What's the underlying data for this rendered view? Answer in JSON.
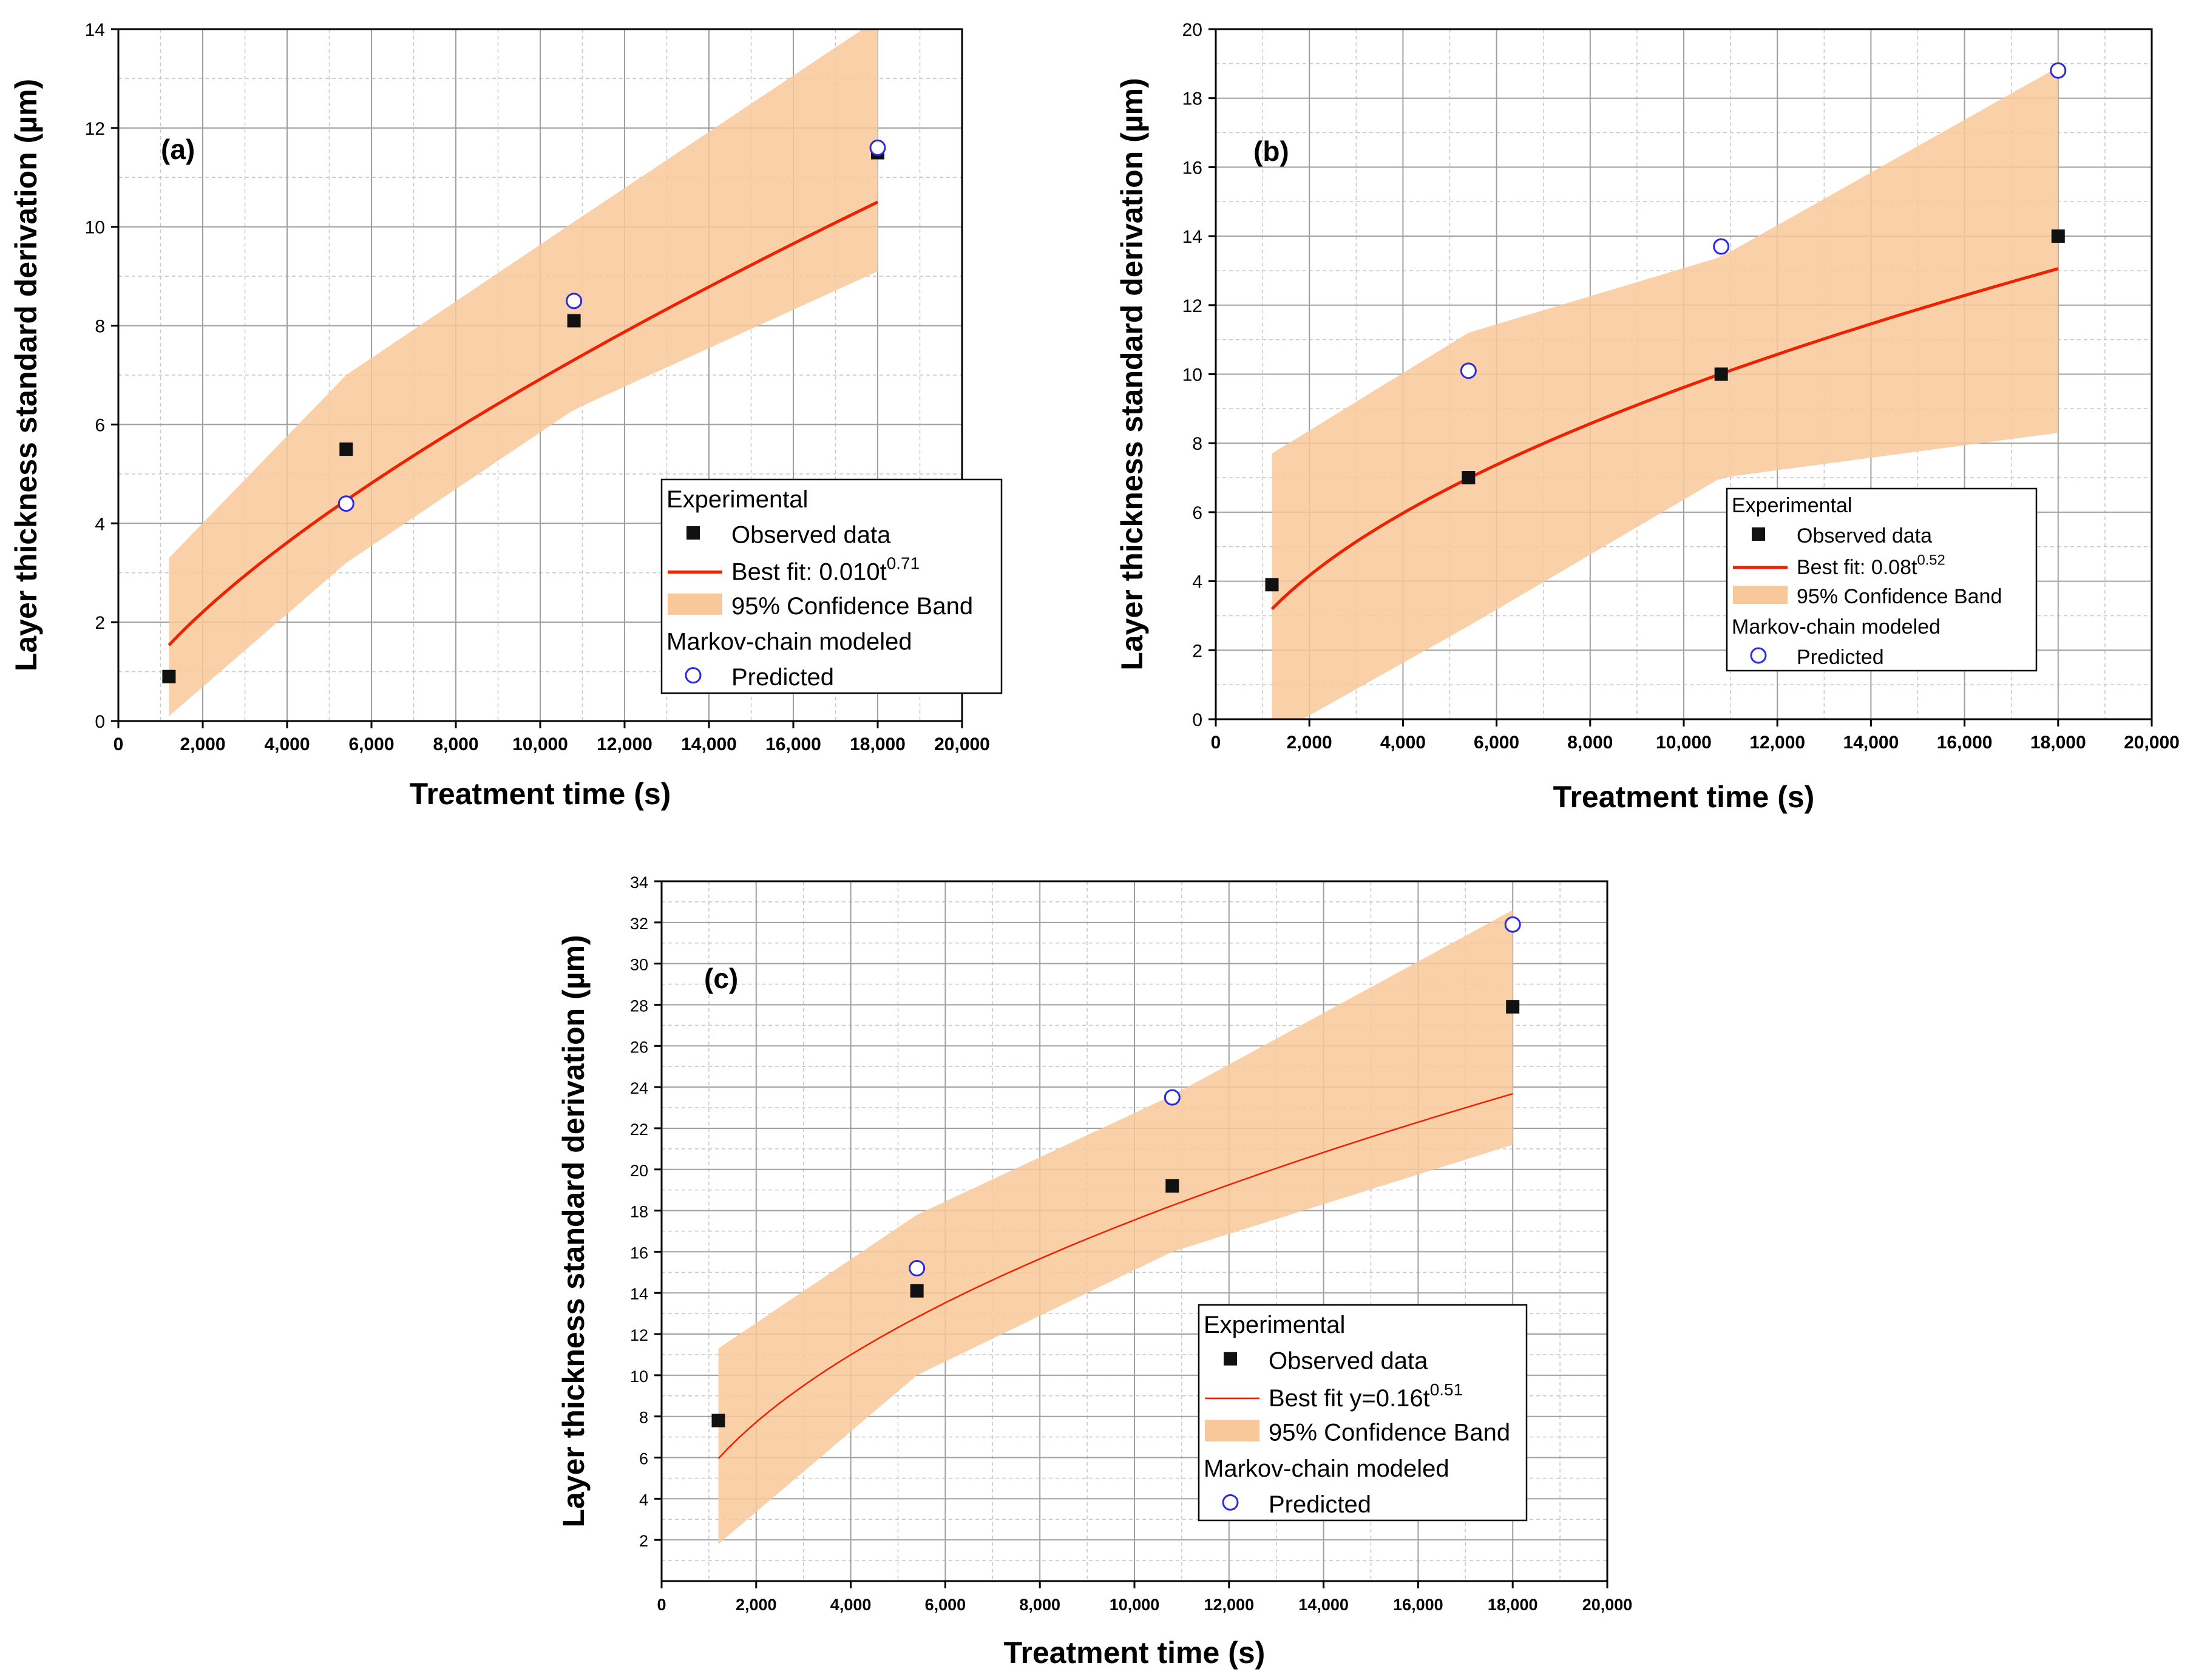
{
  "chart_data": [
    {
      "type": "scatter",
      "panel_label": "(a)",
      "xlabel": "Treatment time (s)",
      "ylabel": "Layer thickness standard derivation (µm)",
      "xlim": [
        0,
        20000
      ],
      "ylim": [
        0,
        14
      ],
      "x_ticks": [
        0,
        2000,
        4000,
        6000,
        8000,
        10000,
        12000,
        14000,
        16000,
        18000,
        20000
      ],
      "x_tick_labels": [
        "0",
        "2,000",
        "4,000",
        "6,000",
        "8,000",
        "10,000",
        "12,000",
        "14,000",
        "16,000",
        "18,000",
        "20,000"
      ],
      "y_ticks": [
        0,
        2,
        4,
        6,
        8,
        10,
        12,
        14
      ],
      "y_tick_labels": [
        "0",
        "2",
        "4",
        "6",
        "8",
        "10",
        "12",
        "14"
      ],
      "grid": true,
      "legend_position": "lower-right",
      "legend": {
        "group1": "Experimental",
        "observed": "Observed data",
        "fit": "Best fit: 0.010t",
        "fit_exp": "0.71",
        "band": "95% Confidence Band",
        "group2": "Markov-chain modeled",
        "predicted": "Predicted"
      },
      "observed": {
        "x": [
          1200,
          5400,
          10800,
          18000
        ],
        "y": [
          0.9,
          5.5,
          8.1,
          11.5
        ]
      },
      "predicted": {
        "x": [
          1200,
          5400,
          10800,
          18000
        ],
        "y": [
          null,
          4.4,
          8.5,
          11.6
        ]
      },
      "fit": {
        "coef": 0.01,
        "exp": 0.71,
        "x_range": [
          1200,
          18000
        ]
      },
      "band": {
        "x": [
          1200,
          5400,
          10800,
          18000
        ],
        "upper": [
          3.3,
          7.0,
          10.1,
          14.2
        ],
        "lower": [
          0.1,
          3.2,
          6.3,
          9.1
        ]
      }
    },
    {
      "type": "scatter",
      "panel_label": "(b)",
      "xlabel": "Treatment time (s)",
      "ylabel": "Layer thickness standard derivation (µm)",
      "xlim": [
        0,
        20000
      ],
      "ylim": [
        0,
        20
      ],
      "x_ticks": [
        0,
        2000,
        4000,
        6000,
        8000,
        10000,
        12000,
        14000,
        16000,
        18000,
        20000
      ],
      "x_tick_labels": [
        "0",
        "2,000",
        "4,000",
        "6,000",
        "8,000",
        "10,000",
        "12,000",
        "14,000",
        "16,000",
        "18,000",
        "20,000"
      ],
      "y_ticks": [
        0,
        2,
        4,
        6,
        8,
        10,
        12,
        14,
        16,
        18,
        20
      ],
      "y_tick_labels": [
        "0",
        "2",
        "4",
        "6",
        "8",
        "10",
        "12",
        "14",
        "16",
        "18",
        "20"
      ],
      "grid": true,
      "legend_position": "lower-right",
      "legend": {
        "group1": "Experimental",
        "observed": "Observed data",
        "fit": "Best fit: 0.08t",
        "fit_exp": "0.52",
        "band": "95% Confidence Band",
        "group2": "Markov-chain modeled",
        "predicted": "Predicted"
      },
      "observed": {
        "x": [
          1200,
          5400,
          10800,
          18000
        ],
        "y": [
          3.9,
          7.0,
          10.0,
          14.0
        ]
      },
      "predicted": {
        "x": [
          1200,
          5400,
          10800,
          18000
        ],
        "y": [
          null,
          10.1,
          13.7,
          18.8
        ]
      },
      "fit": {
        "coef": 0.08,
        "exp": 0.52,
        "x_range": [
          1200,
          18000
        ]
      },
      "band": {
        "x": [
          1200,
          5400,
          10800,
          18000
        ],
        "upper": [
          7.7,
          11.2,
          13.4,
          18.9
        ],
        "lower": [
          -0.5,
          2.7,
          7.0,
          8.3
        ]
      }
    },
    {
      "type": "scatter",
      "panel_label": "(c)",
      "xlabel": "Treatment time (s)",
      "ylabel": "Layer thickness standard derivation (µm)",
      "xlim": [
        0,
        20000
      ],
      "ylim": [
        0,
        34
      ],
      "x_ticks": [
        0,
        2000,
        4000,
        6000,
        8000,
        10000,
        12000,
        14000,
        16000,
        18000,
        20000
      ],
      "x_tick_labels": [
        "0",
        "2,000",
        "4,000",
        "6,000",
        "8,000",
        "10,000",
        "12,000",
        "14,000",
        "16,000",
        "18,000",
        "20,000"
      ],
      "y_ticks": [
        2,
        4,
        6,
        8,
        10,
        12,
        14,
        16,
        18,
        20,
        22,
        24,
        26,
        28,
        30,
        32,
        34
      ],
      "y_tick_labels": [
        "2",
        "4",
        "6",
        "8",
        "10",
        "12",
        "14",
        "16",
        "18",
        "20",
        "22",
        "24",
        "26",
        "28",
        "30",
        "32",
        "34"
      ],
      "x_tick_zero_label": "0",
      "grid": true,
      "legend_position": "lower-right",
      "legend": {
        "group1": "Experimental",
        "observed": "Observed data",
        "fit": "Best fit y=0.16t",
        "fit_exp": "0.51",
        "band": "95% Confidence Band",
        "group2": "Markov-chain modeled",
        "predicted": "Predicted"
      },
      "observed": {
        "x": [
          1200,
          5400,
          10800,
          18000
        ],
        "y": [
          7.8,
          14.1,
          19.2,
          27.9
        ]
      },
      "predicted": {
        "x": [
          1200,
          5400,
          10800,
          18000
        ],
        "y": [
          null,
          15.2,
          23.5,
          31.9
        ]
      },
      "fit": {
        "coef": 0.16,
        "exp": 0.51,
        "x_range": [
          1200,
          18000
        ]
      },
      "band": {
        "x": [
          1200,
          5400,
          10800,
          18000
        ],
        "upper": [
          11.3,
          17.8,
          23.6,
          32.6
        ],
        "lower": [
          1.8,
          10.0,
          16.0,
          21.2
        ]
      }
    }
  ]
}
